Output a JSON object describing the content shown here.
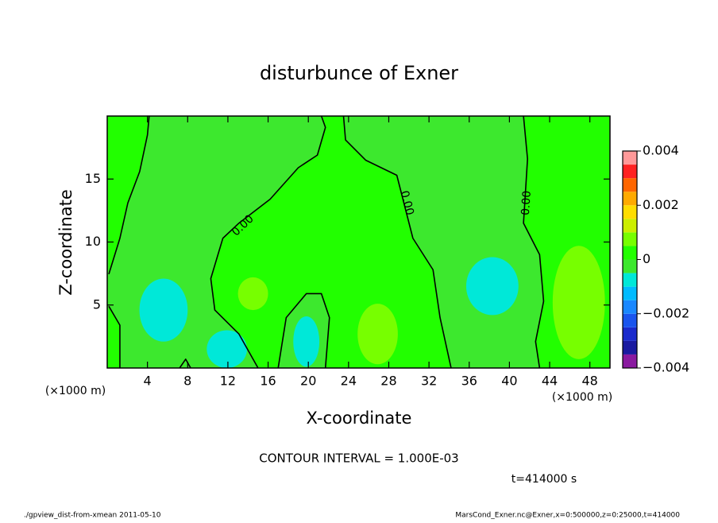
{
  "chart_data": {
    "type": "contour",
    "title": "disturbunce of Exner",
    "xlabel": "X-coordinate",
    "ylabel": "Z-coordinate",
    "x_unit": "(×1000 m)",
    "y_unit": "(×1000 m)",
    "xlim": [
      0,
      50
    ],
    "ylim": [
      0,
      20
    ],
    "xticks": [
      4,
      8,
      12,
      16,
      20,
      24,
      28,
      32,
      36,
      40,
      44,
      48
    ],
    "yticks": [
      5,
      10,
      15
    ],
    "base_value": -0.0002,
    "fill_regions": [
      {
        "value": 0.0002,
        "x": [
          15.0,
          13.1,
          10.7,
          10.3,
          11.5,
          13.1,
          16.2,
          19.0,
          20.9,
          21.7,
          21.3,
          23.5,
          23.7,
          25.7,
          28.8,
          29.6,
          30.4,
          32.4,
          33.1,
          34.2
        ],
        "z": [
          0,
          2.7,
          4.6,
          7.1,
          10.3,
          11.5,
          13.4,
          15.9,
          16.9,
          19.1,
          20,
          20,
          18.1,
          16.5,
          15.3,
          12.8,
          10.3,
          7.8,
          4.0,
          0
        ]
      },
      {
        "value": -0.0002,
        "x": [
          17.0,
          17.8,
          19.8,
          21.3,
          22.1,
          21.7
        ],
        "z": [
          0,
          4.0,
          5.9,
          5.9,
          4.0,
          0
        ]
      },
      {
        "value": 0.0002,
        "x": [
          0.16,
          1.26,
          2.05,
          3.23,
          4.0,
          4.17,
          0
        ],
        "z": [
          7.45,
          10.3,
          13.1,
          15.6,
          18.5,
          20,
          20
        ]
      },
      {
        "value": 0.0002,
        "x": [
          0.16,
          1.26,
          1.26,
          0
        ],
        "z": [
          4.9,
          3.4,
          0,
          0
        ]
      },
      {
        "value": 0.0002,
        "x": [
          41.4,
          41.8,
          41.4,
          43.0,
          43.4,
          42.6,
          43.0,
          50,
          50
        ],
        "z": [
          20,
          16.6,
          11.5,
          9.0,
          5.3,
          2.1,
          0,
          0,
          20
        ]
      }
    ],
    "blobs": [
      {
        "value": -0.0008,
        "x": 5.6,
        "z": 4.6,
        "rx": 2.4,
        "rz": 2.5
      },
      {
        "value": -0.0008,
        "x": 11.9,
        "z": 1.5,
        "rx": 2.0,
        "rz": 1.5
      },
      {
        "value": -0.0008,
        "x": 19.8,
        "z": 2.1,
        "rx": 1.3,
        "rz": 2.0
      },
      {
        "value": -0.0008,
        "x": 38.3,
        "z": 6.5,
        "rx": 2.6,
        "rz": 2.3
      },
      {
        "value": 0.0007,
        "x": 14.5,
        "z": 5.9,
        "rx": 1.5,
        "rz": 1.3
      },
      {
        "value": 0.0007,
        "x": 26.9,
        "z": 2.7,
        "rx": 2.0,
        "rz": 2.4
      },
      {
        "value": 0.0007,
        "x": 46.9,
        "z": 5.2,
        "rx": 2.6,
        "rz": 4.5
      }
    ],
    "contours": [
      {
        "x": [
          0.16,
          1.26,
          2.05,
          3.23,
          4.0,
          4.17
        ],
        "z": [
          7.45,
          10.3,
          13.1,
          15.6,
          18.5,
          20
        ]
      },
      {
        "x": [
          15.0,
          13.1,
          10.7,
          10.3,
          11.5,
          13.1,
          16.2,
          19.0,
          20.9,
          21.7,
          21.3
        ],
        "z": [
          0,
          2.7,
          4.6,
          7.1,
          10.3,
          11.5,
          13.4,
          15.9,
          16.9,
          19.1,
          20
        ]
      },
      {
        "x": [
          23.5,
          23.7,
          25.7,
          28.8,
          29.6,
          30.4,
          32.4,
          33.1,
          34.2
        ],
        "z": [
          20,
          18.1,
          16.5,
          15.3,
          12.8,
          10.3,
          7.8,
          4.0,
          0
        ]
      },
      {
        "x": [
          17.0,
          17.8,
          19.8,
          21.3,
          22.1,
          21.7
        ],
        "z": [
          0,
          4.0,
          5.9,
          5.9,
          4.0,
          0
        ]
      },
      {
        "x": [
          41.4,
          41.8,
          41.4,
          43.0,
          43.4,
          42.6,
          43.0
        ],
        "z": [
          20,
          16.6,
          11.5,
          9.0,
          5.3,
          2.1,
          0
        ]
      },
      {
        "x": [
          0.16,
          1.26,
          1.26
        ],
        "z": [
          4.9,
          3.4,
          0
        ]
      },
      {
        "x": [
          7.2,
          7.8,
          8.3
        ],
        "z": [
          0,
          0.7,
          0
        ]
      }
    ],
    "contour_labels": [
      {
        "text": "0.00",
        "contour": 1,
        "x": 13.5,
        "z": 11.3
      },
      {
        "text": "0.00",
        "contour": 2,
        "x": 29.8,
        "z": 13.1
      },
      {
        "text": "0.00",
        "contour": 4,
        "x": 41.7,
        "z": 13.1
      }
    ],
    "colorbar": {
      "levels": [
        -0.004,
        -0.0035,
        -0.003,
        -0.0025,
        -0.002,
        -0.0015,
        -0.001,
        -0.0005,
        0,
        0.0005,
        0.001,
        0.0015,
        0.002,
        0.0025,
        0.003,
        0.0035,
        0.004
      ],
      "colors": [
        "#8a1aa0",
        "#1a1aa0",
        "#1a2acc",
        "#1a55ee",
        "#1a88ff",
        "#00bbff",
        "#00e8d8",
        "#3de82e",
        "#22ff00",
        "#77ff00",
        "#ccee00",
        "#ffdd00",
        "#ffaa00",
        "#ff6600",
        "#ff2222",
        "#ff9999"
      ],
      "ticks": [
        0.004,
        0.002,
        0,
        {
          "value": -0.002,
          "label": "−0.002"
        },
        {
          "value": -0.004,
          "label": "−0.004"
        }
      ]
    },
    "contour_interval_text": "CONTOUR INTERVAL = 1.000E-03",
    "time_text": "t=414000 s",
    "footer_left": "./gpview_dist-from-xmean  2011-05-10",
    "footer_right": "MarsCond_Exner.nc@Exner,x=0:500000,z=0:25000,t=414000"
  }
}
